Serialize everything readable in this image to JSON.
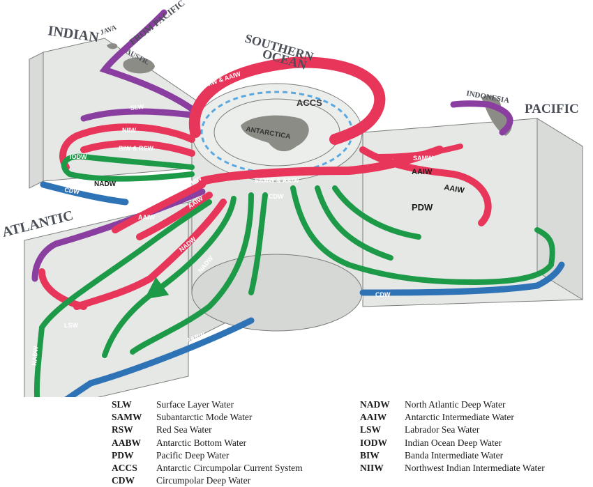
{
  "regions": {
    "indian": "INDIAN",
    "southern_ocean_1": "SOUTHERN",
    "southern_ocean_2": "OCEAN",
    "pacific": "PACIFIC",
    "atlantic": "ATLANTIC"
  },
  "places": {
    "java": "JAVA",
    "austr": "AUSTR.",
    "from_pacific": "FROM PACIFIC",
    "indonesia": "INDONESIA",
    "antarctica": "ANTARCTICA",
    "accs": "ACCS"
  },
  "flow_labels": {
    "slw": "SLW",
    "niiw": "NIIW",
    "biw_rsw": "BIW & RSW",
    "iodw": "IODW",
    "nadw_indian": "NADW",
    "cdw_indian": "CDW",
    "samw_aaiw_top": "SAMW & AAIW",
    "samw_aaiw_mid": "SAMW & AAIW",
    "samw_left": "SAMW",
    "aaiw_left_1": "AAIW",
    "aaiw_left_2": "AAIW",
    "cdw_center": "CDW",
    "nadw_center_1": "NADW",
    "nadw_center_2": "NADW",
    "nadw_atlantic": "NADW",
    "lsw": "LSW",
    "aabw": "AABW",
    "samw_pacific": "SAMW",
    "aaiw_pacific_1": "AAIW",
    "aaiw_pacific_2": "AAIW",
    "pdw": "PDW",
    "cdw_pacific": "CDW"
  },
  "colors": {
    "surface_purple": "#8a3fa0",
    "intermediate_red": "#e8365a",
    "deep_green": "#1d9a48",
    "bottom_blue": "#2f73b7",
    "land_gray": "#8c8c86",
    "box_fill": "#e6e8e6",
    "box_stroke": "#7a7d7a"
  },
  "legend": {
    "left": [
      {
        "abbr": "SLW",
        "desc": "Surface Layer Water"
      },
      {
        "abbr": "SAMW",
        "desc": "Subantarctic Mode Water"
      },
      {
        "abbr": "RSW",
        "desc": "Red Sea Water"
      },
      {
        "abbr": "AABW",
        "desc": "Antarctic Bottom Water"
      },
      {
        "abbr": "PDW",
        "desc": "Pacific Deep Water"
      },
      {
        "abbr": "ACCS",
        "desc": "Antarctic Circumpolar Current System"
      },
      {
        "abbr": "CDW",
        "desc": "Circumpolar Deep Water"
      }
    ],
    "right": [
      {
        "abbr": "NADW",
        "desc": "North Atlantic Deep Water"
      },
      {
        "abbr": "AAIW",
        "desc": "Antarctic Intermediate Water"
      },
      {
        "abbr": "LSW",
        "desc": "Labrador Sea Water"
      },
      {
        "abbr": "IODW",
        "desc": "Indian Ocean Deep Water"
      },
      {
        "abbr": "BIW",
        "desc": "Banda Intermediate Water"
      },
      {
        "abbr": "NIIW",
        "desc": "Northwest Indian Intermediate Water"
      }
    ]
  }
}
